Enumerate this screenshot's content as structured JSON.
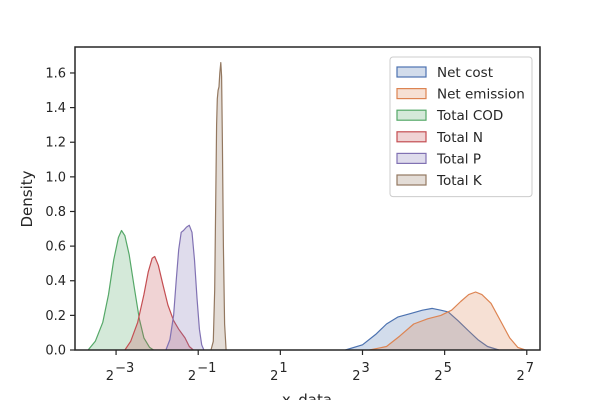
{
  "chart_data": {
    "type": "area",
    "xlabel": "x_data",
    "ylabel": "Density",
    "x_scale": "log2",
    "xlim": [
      0.0625,
      160
    ],
    "ylim": [
      0,
      1.75
    ],
    "x_ticks": [
      {
        "value": 0.125,
        "base": "2",
        "exp": "−3"
      },
      {
        "value": 0.5,
        "base": "2",
        "exp": "−1"
      },
      {
        "value": 2,
        "base": "2",
        "exp": "1"
      },
      {
        "value": 8,
        "base": "2",
        "exp": "3"
      },
      {
        "value": 32,
        "base": "2",
        "exp": "5"
      },
      {
        "value": 128,
        "base": "2",
        "exp": "7"
      }
    ],
    "y_ticks": [
      "0.0",
      "0.2",
      "0.4",
      "0.6",
      "0.8",
      "1.0",
      "1.2",
      "1.4",
      "1.6"
    ],
    "grid": false,
    "legend_position": "top-right",
    "series": [
      {
        "name": "Net cost",
        "color": "#4c72b0",
        "points": [
          [
            6.0,
            0.0
          ],
          [
            8.0,
            0.03
          ],
          [
            10.0,
            0.09
          ],
          [
            12.0,
            0.15
          ],
          [
            14.5,
            0.19
          ],
          [
            18.0,
            0.21
          ],
          [
            22.0,
            0.23
          ],
          [
            26.0,
            0.24
          ],
          [
            30.0,
            0.23
          ],
          [
            34.0,
            0.22
          ],
          [
            40.0,
            0.17
          ],
          [
            48.0,
            0.11
          ],
          [
            56.0,
            0.06
          ],
          [
            66.0,
            0.02
          ],
          [
            80.0,
            0.0
          ]
        ]
      },
      {
        "name": "Net emission",
        "color": "#dd8452",
        "points": [
          [
            9.0,
            0.0
          ],
          [
            12.0,
            0.02
          ],
          [
            15.0,
            0.08
          ],
          [
            19.0,
            0.15
          ],
          [
            24.0,
            0.18
          ],
          [
            30.0,
            0.2
          ],
          [
            36.0,
            0.23
          ],
          [
            42.0,
            0.28
          ],
          [
            48.0,
            0.32
          ],
          [
            54.0,
            0.335
          ],
          [
            60.0,
            0.32
          ],
          [
            70.0,
            0.27
          ],
          [
            82.0,
            0.17
          ],
          [
            96.0,
            0.07
          ],
          [
            110.0,
            0.015
          ],
          [
            125.0,
            0.0
          ]
        ]
      },
      {
        "name": "Total COD",
        "color": "#55a868",
        "points": [
          [
            0.078,
            0.0
          ],
          [
            0.088,
            0.05
          ],
          [
            0.1,
            0.16
          ],
          [
            0.11,
            0.32
          ],
          [
            0.12,
            0.52
          ],
          [
            0.13,
            0.65
          ],
          [
            0.137,
            0.69
          ],
          [
            0.145,
            0.66
          ],
          [
            0.156,
            0.55
          ],
          [
            0.17,
            0.36
          ],
          [
            0.185,
            0.18
          ],
          [
            0.2,
            0.07
          ],
          [
            0.22,
            0.015
          ],
          [
            0.235,
            0.0
          ]
        ]
      },
      {
        "name": "Total N",
        "color": "#c44e52",
        "points": [
          [
            0.145,
            0.0
          ],
          [
            0.16,
            0.05
          ],
          [
            0.18,
            0.16
          ],
          [
            0.2,
            0.32
          ],
          [
            0.215,
            0.45
          ],
          [
            0.23,
            0.53
          ],
          [
            0.24,
            0.54
          ],
          [
            0.255,
            0.49
          ],
          [
            0.275,
            0.38
          ],
          [
            0.3,
            0.26
          ],
          [
            0.33,
            0.17
          ],
          [
            0.36,
            0.12
          ],
          [
            0.4,
            0.07
          ],
          [
            0.43,
            0.02
          ],
          [
            0.46,
            0.0
          ]
        ]
      },
      {
        "name": "Total P",
        "color": "#8172b3",
        "points": [
          [
            0.29,
            0.0
          ],
          [
            0.31,
            0.06
          ],
          [
            0.33,
            0.2
          ],
          [
            0.345,
            0.4
          ],
          [
            0.36,
            0.58
          ],
          [
            0.375,
            0.68
          ],
          [
            0.39,
            0.69
          ],
          [
            0.41,
            0.71
          ],
          [
            0.43,
            0.72
          ],
          [
            0.45,
            0.68
          ],
          [
            0.47,
            0.52
          ],
          [
            0.49,
            0.3
          ],
          [
            0.51,
            0.12
          ],
          [
            0.53,
            0.03
          ],
          [
            0.55,
            0.0
          ]
        ]
      },
      {
        "name": "Total K",
        "color": "#937860",
        "points": [
          [
            0.62,
            0.0
          ],
          [
            0.645,
            0.05
          ],
          [
            0.66,
            0.35
          ],
          [
            0.672,
            0.85
          ],
          [
            0.682,
            1.3
          ],
          [
            0.69,
            1.45
          ],
          [
            0.7,
            1.5
          ],
          [
            0.71,
            1.52
          ],
          [
            0.72,
            1.6
          ],
          [
            0.732,
            1.66
          ],
          [
            0.742,
            1.58
          ],
          [
            0.752,
            1.2
          ],
          [
            0.765,
            0.6
          ],
          [
            0.78,
            0.15
          ],
          [
            0.8,
            0.0
          ]
        ]
      }
    ]
  }
}
